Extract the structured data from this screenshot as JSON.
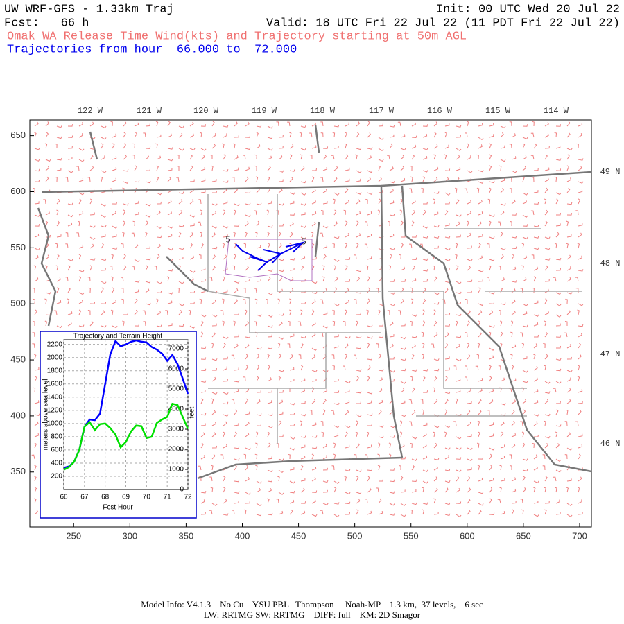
{
  "header": {
    "title": "UW WRF-GFS - 1.33km Traj",
    "init": "Init: 00 UTC Wed 20 Jul 22",
    "forecast": "Fcst:   66 h",
    "valid": "Valid: 18 UTC Fri 22 Jul 22 (11 PDT Fri 22 Jul 22)",
    "subtitle": "Omak WA Release Time Wind(kts) and Trajectory starting at 50m AGL",
    "trajectories": "Trajectories from hour  66.000 to  72.000"
  },
  "map": {
    "xlim": [
      211,
      710.5
    ],
    "ylim": [
      301,
      664
    ],
    "xticks": [
      250,
      300,
      350,
      400,
      450,
      500,
      550,
      600,
      650,
      700
    ],
    "yticks": [
      350,
      400,
      450,
      500,
      550,
      600,
      650
    ],
    "longitude_labels": [
      "122 W",
      "121 W",
      "120 W",
      "119 W",
      "118 W",
      "117 W",
      "116 W",
      "115 W",
      "114 W"
    ],
    "latitude_labels": [
      "49 N",
      "48 N",
      "47 N",
      "46 N"
    ],
    "trajectory_labels": [
      "5",
      "5"
    ]
  },
  "chart_data": {
    "type": "line",
    "title": "Trajectory and Terrain Height",
    "x_label": "Fcst Hour",
    "y_label": "meters above sea level",
    "y2_label": "feet",
    "x": [
      66,
      66.25,
      66.5,
      66.75,
      67,
      67.25,
      67.5,
      67.75,
      68,
      68.25,
      68.5,
      68.75,
      69,
      69.25,
      69.5,
      69.75,
      70,
      70.25,
      70.5,
      70.75,
      71,
      71.25,
      71.5,
      71.75,
      72
    ],
    "series": [
      {
        "color": "#0000ff",
        "values": [
          330,
          350,
          420,
          600,
          950,
          1060,
          1050,
          1150,
          1600,
          2050,
          2250,
          2170,
          2200,
          2240,
          2260,
          2240,
          2230,
          2160,
          2120,
          2060,
          1950,
          2040,
          1900,
          1680,
          1450
        ]
      },
      {
        "color": "#00e000",
        "values": [
          300,
          340,
          420,
          600,
          950,
          1020,
          900,
          990,
          1000,
          930,
          830,
          640,
          720,
          880,
          970,
          960,
          780,
          800,
          1010,
          1060,
          1100,
          1300,
          1280,
          1100,
          920
        ]
      }
    ],
    "xlim": [
      66,
      72
    ],
    "xticks": [
      66,
      67,
      68,
      69,
      70,
      71,
      72
    ],
    "ylim": [
      0,
      2270
    ],
    "yticks": [
      200,
      400,
      600,
      800,
      1000,
      1200,
      1400,
      1600,
      1800,
      2000,
      2200
    ],
    "y2lim": [
      0,
      7450
    ],
    "y2ticks": [
      0,
      1000,
      2000,
      3000,
      4000,
      5000,
      6000,
      7000
    ],
    "grid": true
  },
  "footer": {
    "line1": "Model Info: V4.1.3    No Cu    YSU PBL   Thompson     Noah-MP    1.3 km,  37 levels,    6 sec",
    "line2": "LW: RRTMG SW: RRTMG    DIFF: full    KM: 2D Smagor"
  }
}
